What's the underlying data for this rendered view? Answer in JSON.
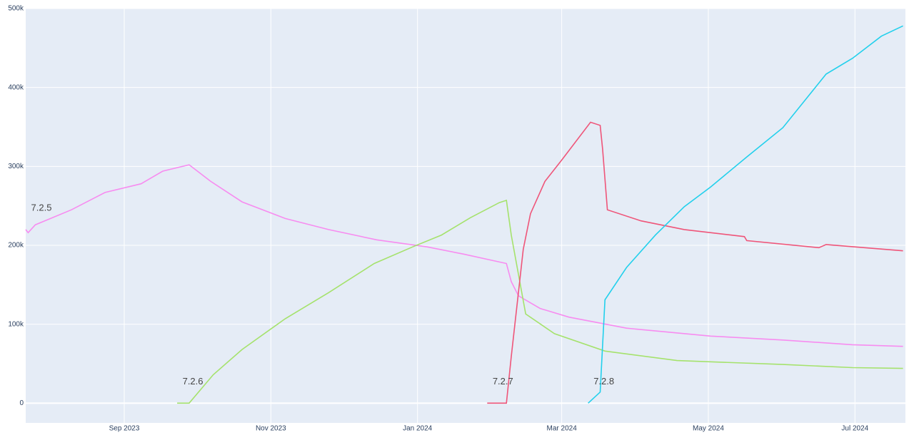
{
  "chart_data": {
    "type": "line",
    "xlim": [
      "2023-07-22",
      "2024-07-22"
    ],
    "xticks": [
      {
        "value": "2023-09-01",
        "label": "Sep 2023"
      },
      {
        "value": "2023-11-01",
        "label": "Nov 2023"
      },
      {
        "value": "2024-01-01",
        "label": "Jan 2024"
      },
      {
        "value": "2024-03-01",
        "label": "Mar 2024"
      },
      {
        "value": "2024-05-01",
        "label": "May 2024"
      },
      {
        "value": "2024-07-01",
        "label": "Jul 2024"
      }
    ],
    "ylim": [
      -25000,
      500000
    ],
    "yticks": [
      0,
      {
        "value": 100000,
        "label": "100k"
      },
      {
        "value": 200000,
        "label": "200k"
      },
      {
        "value": 300000,
        "label": "300k"
      },
      {
        "value": 400000,
        "label": "400k"
      },
      {
        "value": 500000,
        "label": "500k"
      }
    ],
    "grid": true,
    "series": [
      {
        "name": "7.2.5",
        "color": "#f78cf0",
        "x": [
          "2023-07-22",
          "2023-07-23",
          "2023-07-26",
          "2023-08-10",
          "2023-08-24",
          "2023-09-08",
          "2023-09-17",
          "2023-09-28",
          "2023-10-07",
          "2023-10-20",
          "2023-11-07",
          "2023-11-25",
          "2023-12-15",
          "2024-01-05",
          "2024-01-20",
          "2024-02-07",
          "2024-02-09",
          "2024-02-12",
          "2024-02-21",
          "2024-03-04",
          "2024-03-28",
          "2024-05-02",
          "2024-06-01",
          "2024-06-30",
          "2024-07-21"
        ],
        "values": [
          220000,
          216000,
          226000,
          245000,
          267000,
          278000,
          294000,
          302000,
          281000,
          255000,
          234000,
          220000,
          207000,
          198000,
          189000,
          177000,
          154000,
          136000,
          120000,
          109000,
          95000,
          85000,
          80000,
          74000,
          72000
        ]
      },
      {
        "name": "7.2.6",
        "color": "#a5e26c",
        "x": [
          "2023-09-23",
          "2023-09-28",
          "2023-10-08",
          "2023-10-20",
          "2023-11-07",
          "2023-11-25",
          "2023-12-14",
          "2023-12-30",
          "2024-01-11",
          "2024-01-23",
          "2024-02-04",
          "2024-02-07",
          "2024-02-09",
          "2024-02-15",
          "2024-02-27",
          "2024-03-19",
          "2024-04-18",
          "2024-06-01",
          "2024-06-30",
          "2024-07-21"
        ],
        "values": [
          0,
          0,
          36000,
          68000,
          107000,
          140000,
          177000,
          198000,
          213000,
          235000,
          254000,
          257000,
          213000,
          113000,
          88000,
          66000,
          54000,
          49000,
          45000,
          44000
        ]
      },
      {
        "name": "7.2.7",
        "color": "#ef5579",
        "x": [
          "2024-01-30",
          "2024-02-07",
          "2024-02-09",
          "2024-02-14",
          "2024-02-17",
          "2024-02-23",
          "2024-03-01",
          "2024-03-13",
          "2024-03-17",
          "2024-03-18",
          "2024-03-20",
          "2024-04-03",
          "2024-04-21",
          "2024-05-16",
          "2024-05-17",
          "2024-06-16",
          "2024-06-19",
          "2024-07-21"
        ],
        "values": [
          0,
          0,
          59000,
          195000,
          240000,
          281000,
          308000,
          356000,
          352000,
          322000,
          245000,
          231000,
          220000,
          211000,
          206000,
          197000,
          201000,
          193000
        ]
      },
      {
        "name": "7.2.8",
        "color": "#22d0ec",
        "x": [
          "2024-03-12",
          "2024-03-17",
          "2024-03-19",
          "2024-03-28",
          "2024-04-09",
          "2024-04-21",
          "2024-05-02",
          "2024-05-17",
          "2024-06-01",
          "2024-06-19",
          "2024-06-30",
          "2024-07-12",
          "2024-07-21"
        ],
        "values": [
          0,
          14000,
          131000,
          172000,
          213000,
          249000,
          274000,
          312000,
          349000,
          417000,
          437000,
          465000,
          478000
        ]
      }
    ]
  }
}
